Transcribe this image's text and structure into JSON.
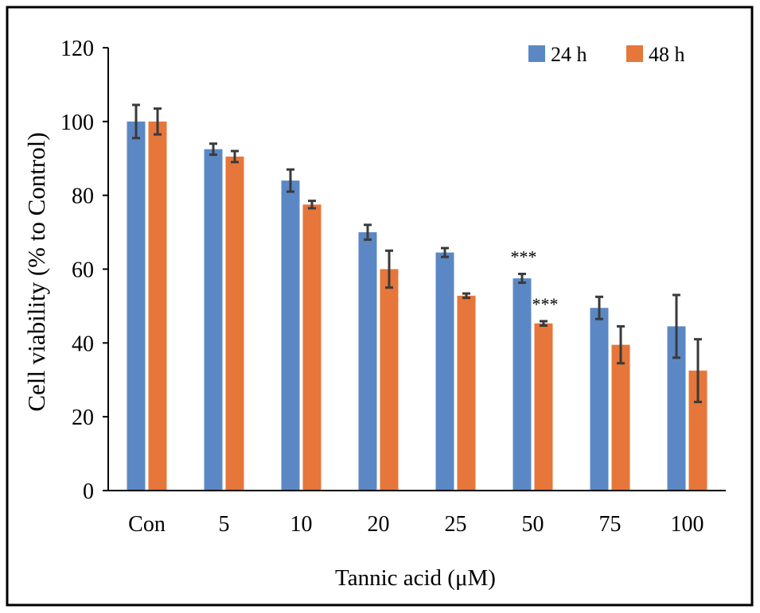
{
  "chart_data": {
    "type": "bar",
    "xlabel": "Tannic acid (μM)",
    "ylabel": "Cell viability (% to Control)",
    "ylim": [
      0,
      120
    ],
    "yticks": [
      0,
      20,
      40,
      60,
      80,
      100,
      120
    ],
    "grid": false,
    "legend_position": "top-right",
    "categories": [
      "Con",
      "5",
      "10",
      "20",
      "25",
      "50",
      "75",
      "100"
    ],
    "series": [
      {
        "name": "24 h",
        "color": "#5b88c4",
        "values": [
          100,
          92.5,
          84,
          70,
          64.5,
          57.5,
          49.5,
          44.5
        ],
        "errors": [
          4.5,
          1.5,
          3,
          2,
          1.2,
          1.2,
          3,
          8.5
        ]
      },
      {
        "name": "48 h",
        "color": "#e6763a",
        "values": [
          100,
          90.5,
          77.5,
          60,
          52.8,
          45.3,
          39.5,
          32.5
        ],
        "errors": [
          3.5,
          1.5,
          1,
          5,
          0.6,
          0.6,
          5,
          8.5
        ]
      }
    ],
    "annotations": [
      {
        "text": "***",
        "series": 0,
        "category": 5
      },
      {
        "text": "***",
        "series": 1,
        "category": 5
      }
    ]
  }
}
